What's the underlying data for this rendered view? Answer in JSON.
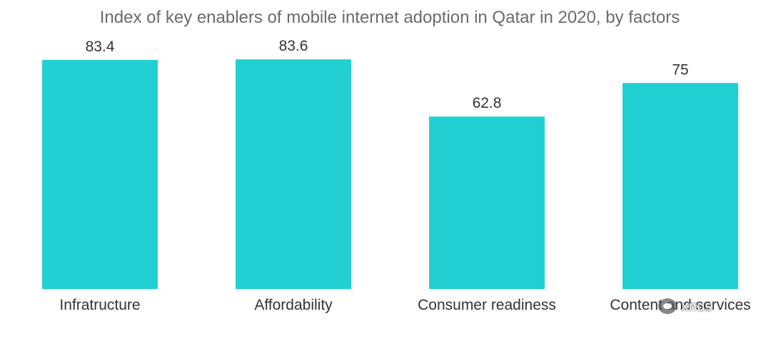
{
  "chart_data": {
    "type": "bar",
    "title": "Index of key enablers of mobile internet adoption in Qatar in 2020, by factors",
    "categories": [
      "Infratructure",
      "Affordability",
      "Consumer readiness",
      "Content and services"
    ],
    "values": [
      83.4,
      83.6,
      62.8,
      75
    ],
    "value_labels": [
      "83.4",
      "83.6",
      "62.8",
      "75"
    ],
    "xlabel": "",
    "ylabel": "",
    "ylim": [
      0,
      100
    ],
    "grid": false,
    "legend": "none",
    "bar_color": "#22d0d4"
  },
  "watermark": {
    "text": "xnus",
    "icon": "wechat-icon"
  }
}
